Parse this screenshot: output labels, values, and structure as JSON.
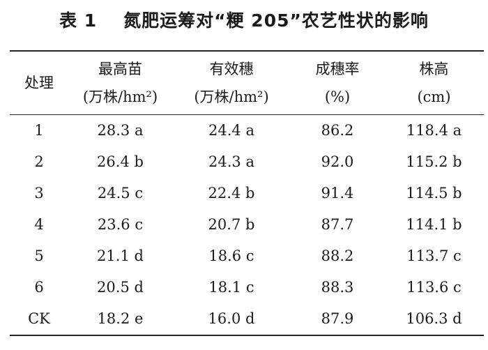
{
  "caption": {
    "label": "表 1",
    "title": "氮肥运筹对“粳 205”农艺性状的影响"
  },
  "table": {
    "headers": [
      {
        "line1": "处理",
        "line2": ""
      },
      {
        "line1": "最高苗",
        "line2": "(万株/hm²)"
      },
      {
        "line1": "有效穗",
        "line2": "(万株/hm²)"
      },
      {
        "line1": "成穗率",
        "line2": "(%)"
      },
      {
        "line1": "株高",
        "line2": "(cm)"
      }
    ],
    "rows": [
      [
        "1",
        "28.3 a",
        "24.4 a",
        "86.2",
        "118.4 a"
      ],
      [
        "2",
        "26.4 b",
        "24.3 a",
        "92.0",
        "115.2 b"
      ],
      [
        "3",
        "24.5 c",
        "22.4 b",
        "91.4",
        "114.5 b"
      ],
      [
        "4",
        "23.6 c",
        "20.7 b",
        "87.7",
        "114.1 b"
      ],
      [
        "5",
        "21.1 d",
        "18.6 c",
        "88.2",
        "113.7 c"
      ],
      [
        "6",
        "20.5 d",
        "18.1 c",
        "88.3",
        "113.6 c"
      ],
      [
        "CK",
        "18.2 e",
        "16.0 d",
        "87.9",
        "106.3 d"
      ]
    ]
  }
}
